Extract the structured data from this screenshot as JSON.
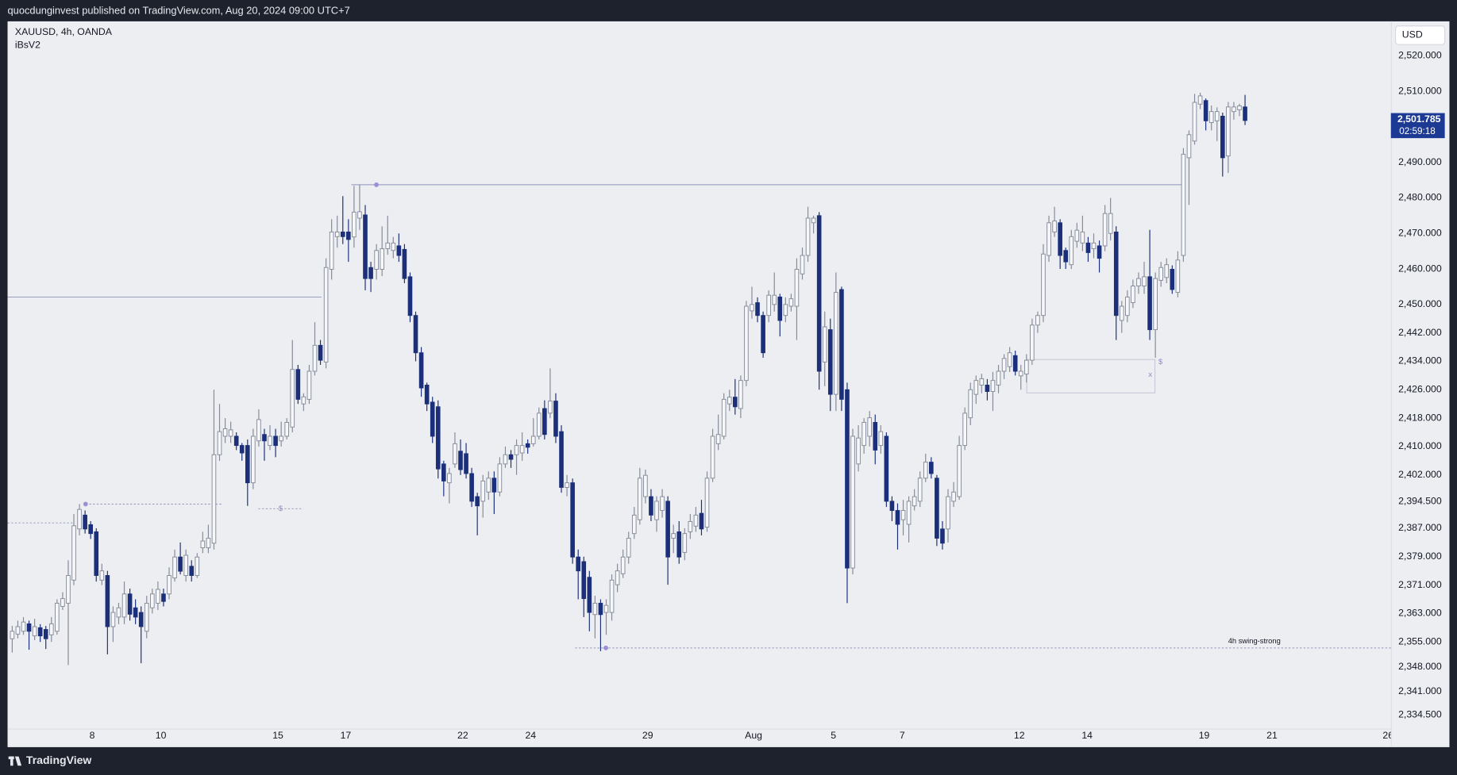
{
  "header": {
    "text": "quocdunginvest published on TradingView.com, Aug 20, 2024 09:00 UTC+7"
  },
  "footer": {
    "text": "TradingView"
  },
  "chart_data": {
    "type": "candlestick",
    "symbol": "XAUUSD, 4h, OANDA",
    "indicator": "iBsV2",
    "currency": "USD",
    "up_color": "#f6f7fa",
    "up_border": "#848a97",
    "down_color": "#1b2f7a",
    "grid": false,
    "ylim": [
      2330.6,
      2529.7
    ],
    "yticks": [
      {
        "value": 2520,
        "label": "2,520.000"
      },
      {
        "value": 2510,
        "label": "2,510.000"
      },
      {
        "value": 2490,
        "label": "2,490.000"
      },
      {
        "value": 2480,
        "label": "2,480.000"
      },
      {
        "value": 2470,
        "label": "2,470.000"
      },
      {
        "value": 2460,
        "label": "2,460.000"
      },
      {
        "value": 2450,
        "label": "2,450.000"
      },
      {
        "value": 2442,
        "label": "2,442.000"
      },
      {
        "value": 2434,
        "label": "2,434.000"
      },
      {
        "value": 2426,
        "label": "2,426.000"
      },
      {
        "value": 2418,
        "label": "2,418.000"
      },
      {
        "value": 2410,
        "label": "2,410.000"
      },
      {
        "value": 2402,
        "label": "2,402.000"
      },
      {
        "value": 2394.5,
        "label": "2,394.500"
      },
      {
        "value": 2387,
        "label": "2,387.000"
      },
      {
        "value": 2379,
        "label": "2,379.000"
      },
      {
        "value": 2371,
        "label": "2,371.000"
      },
      {
        "value": 2363,
        "label": "2,363.000"
      },
      {
        "value": 2355,
        "label": "2,355.000"
      },
      {
        "value": 2348,
        "label": "2,348.000"
      },
      {
        "value": 2341,
        "label": "2,341.000"
      },
      {
        "value": 2334.5,
        "label": "2,334.500"
      }
    ],
    "x_labels": [
      "8",
      "10",
      "15",
      "17",
      "22",
      "24",
      "29",
      "Aug",
      "5",
      "7",
      "12",
      "14",
      "19",
      "21",
      "26"
    ],
    "last_price": {
      "value": 2501.785,
      "label": "2,501.785"
    },
    "countdown": "02:59:18",
    "levels": [
      2483.7,
      2452.1,
      2393.8,
      2388.5,
      2392.5,
      2353.3
    ],
    "zone": [
      2425.1,
      2434.5
    ],
    "annotations": [
      "$",
      "$",
      "x",
      "4h swing-strong"
    ],
    "open": [
      2355.9,
      2357.2,
      2358,
      2360.1,
      2356.7,
      2359,
      2358.5,
      2357,
      2358,
      2365,
      2365.9,
      2372.4,
      2386.8,
      2390.7,
      2388,
      2386,
      2372.4,
      2373.7,
      2359.3,
      2362,
      2362,
      2368.5,
      2364.6,
      2363.3,
      2358,
      2364.6,
      2365.9,
      2368.5,
      2368.5,
      2373,
      2378.9,
      2373.7,
      2376.3,
      2373.7,
      2381.5,
      2381.5,
      2382.8,
      2407.7,
      2412.9,
      2412.9,
      2412.9,
      2410.3,
      2410.3,
      2399.8,
      2411.6,
      2413.4,
      2410.3,
      2412.9,
      2411.6,
      2412.9,
      2415.5,
      2431.7,
      2422,
      2423.3,
      2431.2,
      2438.5,
      2433.8,
      2459.9,
      2469.1,
      2470.4,
      2470.4,
      2469,
      2474.3,
      2475.2,
      2460.4,
      2459.9,
      2459.9,
      2465.7,
      2465.2,
      2466.5,
      2465.5,
      2457.8,
      2446.9,
      2436.4,
      2427.3,
      2422.5,
      2421.2,
      2405.1,
      2399.8,
      2405.1,
      2408.7,
      2408,
      2402.4,
      2395.9,
      2394.6,
      2397.2,
      2401.1,
      2397.2,
      2405.1,
      2407.7,
      2407.7,
      2408.2,
      2410.8,
      2410.8,
      2412.9,
      2420.7,
      2419.4,
      2422.8,
      2414.2,
      2398.5,
      2399.8,
      2378.9,
      2377.6,
      2373.2,
      2362.7,
      2365.9,
      2363.3,
      2363.3,
      2371.1,
      2374.2,
      2378.9,
      2385.5,
      2389.4,
      2395.9,
      2395.9,
      2389.4,
      2392,
      2394.6,
      2384.2,
      2386,
      2380.2,
      2386,
      2387.6,
      2391.2,
      2387.3,
      2401.1,
      2410.8,
      2412.9,
      2422,
      2423.9,
      2420.7,
      2428.6,
      2448.2,
      2450.5,
      2446.9,
      2446.9,
      2450,
      2452.1,
      2446.9,
      2449.5,
      2449.5,
      2458.6,
      2463.8,
      2473,
      2475,
      2433.8,
      2442.9,
      2424.7,
      2454.2,
      2426,
      2375.8,
      2405.1,
      2410.3,
      2412.9,
      2416.8,
      2410.3,
      2412.9,
      2394.6,
      2392,
      2389.4,
      2388.1,
      2393.3,
      2394.6,
      2401.1,
      2405.6,
      2401.1,
      2386.8,
      2386.8,
      2394.6,
      2395.9,
      2410.3,
      2418.1,
      2424.7,
      2427.3,
      2427.3,
      2425.5,
      2427.3,
      2431.2,
      2432.5,
      2435.6,
      2429.9,
      2430.4,
      2434.3,
      2444.2,
      2446.9,
      2463.8,
      2470.4,
      2473,
      2465.2,
      2461.2,
      2467.8,
      2467.3,
      2467.3,
      2465.7,
      2466.5,
      2466.5,
      2470,
      2470.4,
      2445.5,
      2446.9,
      2450.5,
      2455.2,
      2455.2,
      2457.8,
      2442.9,
      2456.8,
      2457.6,
      2459.9,
      2453.4,
      2463.8,
      2491.3,
      2496,
      2506.4,
      2507.4,
      2501.2,
      2501.7,
      2503,
      2491.8,
      2504.3,
      2504.8,
      2505.6
    ],
    "high": [
      2359.5,
      2361,
      2362,
      2361,
      2361.5,
      2360,
      2359.5,
      2362,
      2367,
      2369,
      2378,
      2391,
      2393.8,
      2392,
      2389,
      2387,
      2377,
      2375,
      2365,
      2366,
      2372,
      2370,
      2367,
      2365,
      2368,
      2370,
      2372,
      2370,
      2376,
      2381,
      2383,
      2381,
      2378,
      2380,
      2386,
      2388,
      2426,
      2422,
      2418,
      2417,
      2414,
      2411,
      2412,
      2415,
      2420.5,
      2415,
      2416,
      2415,
      2417,
      2418,
      2440,
      2433,
      2425,
      2433,
      2445,
      2440,
      2463,
      2474,
      2475,
      2480.5,
      2474,
      2483.4,
      2483.7,
      2478,
      2462,
      2467,
      2472,
      2475,
      2469,
      2470,
      2467,
      2459,
      2448,
      2438,
      2428,
      2424,
      2423,
      2406,
      2404,
      2414,
      2412,
      2411,
      2404,
      2397,
      2402,
      2403,
      2403,
      2407,
      2410,
      2409,
      2412,
      2414,
      2412,
      2418,
      2421,
      2423,
      2432,
      2425,
      2416,
      2402,
      2401,
      2381,
      2379,
      2375,
      2368,
      2367,
      2367,
      2374,
      2377,
      2381,
      2386,
      2393,
      2404,
      2403.5,
      2398,
      2396,
      2398,
      2396,
      2388,
      2389,
      2387,
      2391,
      2393,
      2395,
      2403,
      2415,
      2419,
      2425,
      2426,
      2429,
      2430,
      2451,
      2455,
      2452,
      2448,
      2454,
      2459,
      2453,
      2452,
      2453,
      2463,
      2466,
      2477.5,
      2475,
      2476,
      2448,
      2446,
      2459,
      2455,
      2428,
      2415,
      2416,
      2418,
      2420,
      2419,
      2416,
      2414,
      2396,
      2394,
      2395,
      2396,
      2398,
      2403,
      2408,
      2407,
      2402,
      2389,
      2398,
      2400,
      2413,
      2421,
      2428,
      2430,
      2430.5,
      2429,
      2431,
      2433,
      2436,
      2438,
      2437,
      2433,
      2436,
      2446,
      2448,
      2467,
      2475,
      2477.5,
      2474,
      2466,
      2471,
      2473,
      2475,
      2469,
      2470,
      2468,
      2478,
      2480,
      2472,
      2451,
      2454,
      2457,
      2459,
      2462,
      2471,
      2459,
      2462,
      2463,
      2461,
      2465,
      2494,
      2499,
      2509.3,
      2509.6,
      2508,
      2506,
      2505.5,
      2504,
      2507,
      2507,
      2506.5,
      2509
    ],
    "low": [
      2352,
      2356,
      2357,
      2352.8,
      2355.5,
      2355,
      2353,
      2355,
      2357,
      2364,
      2348.5,
      2371,
      2385,
      2385.5,
      2384,
      2372,
      2371,
      2351.5,
      2355,
      2360,
      2360,
      2361,
      2360,
      2349,
      2356,
      2363,
      2364,
      2365,
      2367,
      2372,
      2374,
      2372,
      2372,
      2373,
      2380,
      2380,
      2381,
      2406,
      2411,
      2411,
      2409,
      2406,
      2393.3,
      2398,
      2410,
      2406,
      2409,
      2407,
      2410,
      2412,
      2414,
      2422,
      2420,
      2422,
      2430,
      2433,
      2432,
      2457,
      2466,
      2467,
      2462,
      2466,
      2471,
      2454,
      2453.5,
      2457,
      2458,
      2464,
      2463,
      2462,
      2456,
      2445,
      2434,
      2424,
      2420,
      2411,
      2401,
      2396,
      2394,
      2404,
      2402,
      2401,
      2393,
      2385,
      2390,
      2395,
      2391,
      2396,
      2404,
      2404,
      2402,
      2406,
      2408,
      2410,
      2412,
      2412,
      2418,
      2411,
      2397,
      2396,
      2377,
      2367,
      2362,
      2358,
      2356,
      2352.4,
      2357,
      2361,
      2369,
      2373,
      2377,
      2384,
      2388,
      2394,
      2389,
      2386,
      2390,
      2371.1,
      2380,
      2377,
      2378,
      2384,
      2386,
      2385,
      2386,
      2400,
      2409,
      2412,
      2420,
      2419,
      2418,
      2427,
      2446,
      2445,
      2435,
      2445,
      2448,
      2441,
      2445,
      2448,
      2440,
      2457,
      2462,
      2470,
      2426,
      2427,
      2420,
      2420,
      2420,
      2365.9,
      2374,
      2403,
      2408,
      2410,
      2405,
      2408,
      2393,
      2389,
      2381,
      2385,
      2383,
      2392,
      2393,
      2400,
      2401,
      2382,
      2381,
      2383,
      2393,
      2395,
      2409,
      2416,
      2422,
      2425,
      2423,
      2420,
      2425,
      2429,
      2431,
      2430,
      2426,
      2428,
      2433,
      2442,
      2445,
      2462,
      2469,
      2460,
      2460,
      2460,
      2466,
      2465,
      2462,
      2463,
      2459,
      2465,
      2468,
      2440,
      2442,
      2445,
      2449,
      2453,
      2453,
      2440,
      2435,
      2455,
      2456,
      2453,
      2452,
      2462,
      2478,
      2495,
      2505,
      2499,
      2499,
      2496,
      2486,
      2487,
      2502,
      2503,
      2500.5
    ],
    "close": [
      2358,
      2359.3,
      2360.6,
      2358,
      2359.3,
      2356.7,
      2355.9,
      2360.1,
      2365.9,
      2367.2,
      2373.7,
      2387.7,
      2392.3,
      2386.8,
      2385.5,
      2373.7,
      2375,
      2359.3,
      2363.3,
      2364.6,
      2368.5,
      2362.8,
      2362,
      2359.3,
      2365.9,
      2368.5,
      2369.8,
      2366.4,
      2373.7,
      2378.9,
      2374.9,
      2379.4,
      2373.7,
      2378.9,
      2383.4,
      2384.2,
      2407.7,
      2414.2,
      2415,
      2414.7,
      2410.3,
      2408.2,
      2399.8,
      2412.9,
      2417.6,
      2411.6,
      2412.9,
      2410.3,
      2412.9,
      2416.8,
      2431.7,
      2423.3,
      2424,
      2431.2,
      2438.5,
      2434.3,
      2460.4,
      2470.4,
      2470.4,
      2469.1,
      2468.3,
      2476,
      2476.1,
      2457.3,
      2457.3,
      2465.2,
      2465.7,
      2467.3,
      2467.3,
      2463.8,
      2457.3,
      2446.9,
      2436.4,
      2426.5,
      2422,
      2412.9,
      2403.7,
      2400.3,
      2402.4,
      2410.8,
      2403.5,
      2402.4,
      2394.6,
      2393.3,
      2400.3,
      2401.1,
      2397.2,
      2405.1,
      2407.7,
      2406.4,
      2410.3,
      2410.3,
      2409.8,
      2412.9,
      2419.4,
      2413.4,
      2422.8,
      2412.9,
      2398.5,
      2399.8,
      2378.9,
      2375,
      2367.2,
      2363.3,
      2365.9,
      2362.7,
      2365.3,
      2372.4,
      2375,
      2378.9,
      2384.2,
      2390.7,
      2401.1,
      2401.9,
      2390.7,
      2394.6,
      2395.9,
      2378.9,
      2385.5,
      2378.9,
      2385.5,
      2388.9,
      2390.7,
      2386.8,
      2401.1,
      2412.9,
      2413.4,
      2423.3,
      2423.9,
      2421.2,
      2428.6,
      2449.5,
      2450,
      2446.9,
      2436.4,
      2452.6,
      2452.6,
      2445.5,
      2450,
      2451.6,
      2459.9,
      2463.8,
      2474.3,
      2474.3,
      2431.2,
      2443.7,
      2424.7,
      2453.4,
      2423.3,
      2375.8,
      2412.9,
      2412.4,
      2416.8,
      2418.1,
      2409,
      2414.2,
      2394.6,
      2392,
      2388.1,
      2392,
      2394.6,
      2395.9,
      2401.1,
      2405.6,
      2402.4,
      2384.2,
      2382.8,
      2395.9,
      2397.2,
      2410.3,
      2419.4,
      2426,
      2428.6,
      2429.1,
      2425.5,
      2428.6,
      2431.2,
      2434.8,
      2436.4,
      2431.2,
      2431.2,
      2434.3,
      2444.2,
      2446.9,
      2464.2,
      2473,
      2473.5,
      2463.8,
      2462,
      2469.1,
      2470.9,
      2470.4,
      2464.6,
      2467.3,
      2463,
      2475.6,
      2475.6,
      2446.9,
      2449.5,
      2452.1,
      2455.2,
      2457.3,
      2457.8,
      2442.9,
      2457.3,
      2460.4,
      2461.2,
      2454.2,
      2462.5,
      2492.3,
      2497.8,
      2506.9,
      2508.7,
      2501.7,
      2504.3,
      2504.3,
      2491.3,
      2505.6,
      2505.6,
      2505.9,
      2501.785
    ]
  }
}
